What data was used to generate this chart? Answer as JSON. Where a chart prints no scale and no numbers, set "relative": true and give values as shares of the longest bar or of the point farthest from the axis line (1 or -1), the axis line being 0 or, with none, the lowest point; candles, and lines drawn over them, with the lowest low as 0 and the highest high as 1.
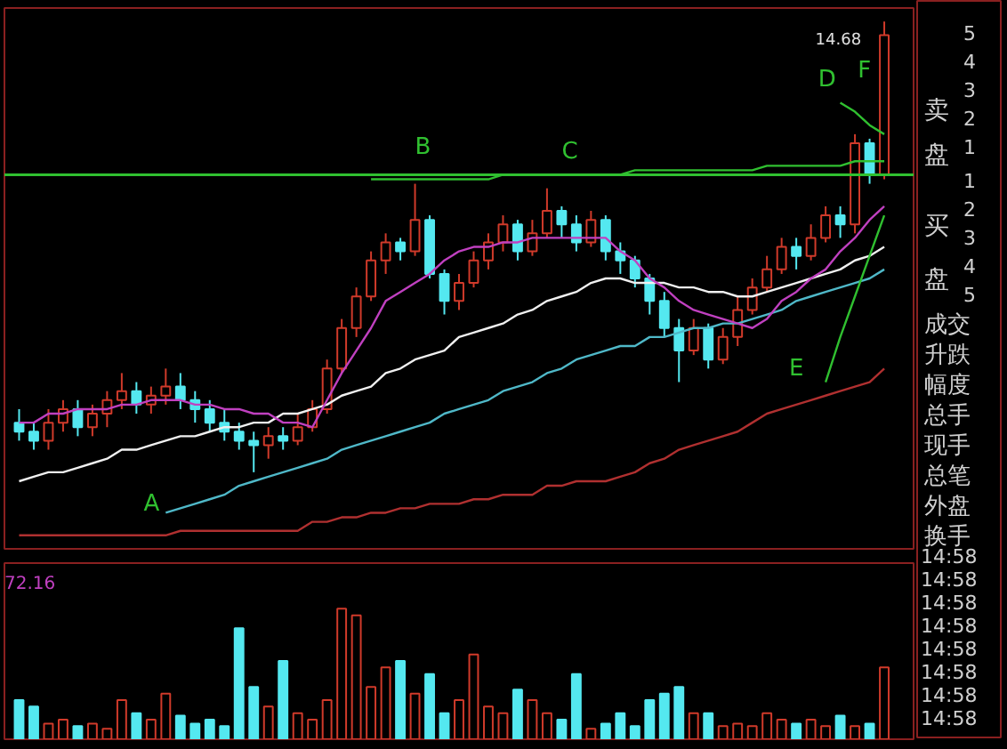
{
  "chart_data": [
    {
      "type": "candlestick",
      "relative": true,
      "categories": [
        null,
        null,
        null,
        null,
        null,
        null,
        null,
        null,
        null,
        null,
        null,
        null,
        null,
        null,
        null,
        null,
        null,
        null,
        null,
        null,
        null,
        null,
        null,
        null,
        null,
        null,
        null,
        null,
        null,
        null,
        null,
        null,
        null,
        null,
        null,
        null,
        null,
        null,
        null,
        null,
        null,
        null,
        null,
        null,
        null,
        null,
        null,
        null,
        null,
        null,
        null,
        null,
        null,
        null,
        null,
        null,
        null,
        null,
        null,
        null
      ],
      "ohlc": [
        [
          0.11,
          0.14,
          0.07,
          0.09
        ],
        [
          0.09,
          0.11,
          0.05,
          0.07
        ],
        [
          0.07,
          0.14,
          0.05,
          0.11
        ],
        [
          0.11,
          0.16,
          0.09,
          0.14
        ],
        [
          0.14,
          0.16,
          0.08,
          0.1
        ],
        [
          0.1,
          0.15,
          0.08,
          0.13
        ],
        [
          0.13,
          0.18,
          0.1,
          0.16
        ],
        [
          0.16,
          0.22,
          0.14,
          0.18
        ],
        [
          0.18,
          0.2,
          0.13,
          0.15
        ],
        [
          0.15,
          0.19,
          0.13,
          0.17
        ],
        [
          0.17,
          0.23,
          0.15,
          0.19
        ],
        [
          0.19,
          0.22,
          0.14,
          0.16
        ],
        [
          0.16,
          0.18,
          0.11,
          0.14
        ],
        [
          0.14,
          0.16,
          0.09,
          0.11
        ],
        [
          0.11,
          0.14,
          0.07,
          0.09
        ],
        [
          0.09,
          0.11,
          0.05,
          0.07
        ],
        [
          0.07,
          0.09,
          0.0,
          0.06
        ],
        [
          0.06,
          0.1,
          0.03,
          0.08
        ],
        [
          0.08,
          0.1,
          0.05,
          0.07
        ],
        [
          0.07,
          0.13,
          0.06,
          0.1
        ],
        [
          0.1,
          0.16,
          0.09,
          0.14
        ],
        [
          0.14,
          0.25,
          0.13,
          0.23
        ],
        [
          0.23,
          0.34,
          0.22,
          0.32
        ],
        [
          0.32,
          0.41,
          0.3,
          0.39
        ],
        [
          0.39,
          0.49,
          0.38,
          0.47
        ],
        [
          0.47,
          0.53,
          0.44,
          0.51
        ],
        [
          0.51,
          0.52,
          0.47,
          0.49
        ],
        [
          0.49,
          0.64,
          0.48,
          0.56
        ],
        [
          0.56,
          0.57,
          0.43,
          0.44
        ],
        [
          0.44,
          0.45,
          0.35,
          0.38
        ],
        [
          0.38,
          0.44,
          0.36,
          0.42
        ],
        [
          0.42,
          0.49,
          0.41,
          0.47
        ],
        [
          0.47,
          0.53,
          0.45,
          0.51
        ],
        [
          0.51,
          0.57,
          0.49,
          0.55
        ],
        [
          0.55,
          0.56,
          0.47,
          0.49
        ],
        [
          0.49,
          0.56,
          0.48,
          0.53
        ],
        [
          0.53,
          0.63,
          0.52,
          0.58
        ],
        [
          0.58,
          0.59,
          0.52,
          0.55
        ],
        [
          0.55,
          0.57,
          0.49,
          0.51
        ],
        [
          0.51,
          0.58,
          0.5,
          0.56
        ],
        [
          0.56,
          0.57,
          0.47,
          0.49
        ],
        [
          0.49,
          0.51,
          0.44,
          0.47
        ],
        [
          0.47,
          0.48,
          0.41,
          0.43
        ],
        [
          0.43,
          0.44,
          0.35,
          0.38
        ],
        [
          0.38,
          0.4,
          0.3,
          0.32
        ],
        [
          0.32,
          0.34,
          0.2,
          0.27
        ],
        [
          0.27,
          0.34,
          0.26,
          0.32
        ],
        [
          0.32,
          0.33,
          0.23,
          0.25
        ],
        [
          0.25,
          0.32,
          0.24,
          0.3
        ],
        [
          0.3,
          0.39,
          0.28,
          0.36
        ],
        [
          0.36,
          0.43,
          0.35,
          0.41
        ],
        [
          0.41,
          0.48,
          0.4,
          0.45
        ],
        [
          0.45,
          0.52,
          0.44,
          0.5
        ],
        [
          0.5,
          0.52,
          0.45,
          0.48
        ],
        [
          0.48,
          0.55,
          0.47,
          0.52
        ],
        [
          0.52,
          0.59,
          0.51,
          0.57
        ],
        [
          0.57,
          0.59,
          0.52,
          0.55
        ],
        [
          0.55,
          0.75,
          0.53,
          0.73
        ],
        [
          0.73,
          0.74,
          0.64,
          0.66
        ],
        [
          0.66,
          1.0,
          0.65,
          0.97
        ]
      ],
      "series": [
        {
          "type": "line",
          "color": "#f0f0f0",
          "values": [
            -0.02,
            -0.01,
            0.0,
            0.0,
            0.01,
            0.02,
            0.03,
            0.05,
            0.05,
            0.06,
            0.07,
            0.08,
            0.08,
            0.09,
            0.1,
            0.1,
            0.11,
            0.11,
            0.13,
            0.13,
            0.14,
            0.15,
            0.17,
            0.18,
            0.19,
            0.22,
            0.23,
            0.25,
            0.26,
            0.27,
            0.3,
            0.31,
            0.32,
            0.33,
            0.35,
            0.36,
            0.38,
            0.39,
            0.4,
            0.42,
            0.43,
            0.43,
            0.42,
            0.42,
            0.42,
            0.41,
            0.41,
            0.4,
            0.4,
            0.39,
            0.39,
            0.4,
            0.41,
            0.42,
            0.43,
            0.44,
            0.45,
            0.47,
            0.48,
            0.5
          ]
        },
        {
          "type": "line",
          "color": "#4fb8c8",
          "values": [
            null,
            null,
            null,
            null,
            null,
            null,
            null,
            null,
            null,
            null,
            -0.09,
            -0.08,
            -0.07,
            -0.06,
            -0.05,
            -0.03,
            -0.02,
            -0.01,
            0.0,
            0.01,
            0.02,
            0.03,
            0.05,
            0.06,
            0.07,
            0.08,
            0.09,
            0.1,
            0.11,
            0.13,
            0.14,
            0.15,
            0.16,
            0.18,
            0.19,
            0.2,
            0.22,
            0.23,
            0.25,
            0.26,
            0.27,
            0.28,
            0.28,
            0.3,
            0.3,
            0.31,
            0.32,
            0.32,
            0.33,
            0.33,
            0.34,
            0.35,
            0.36,
            0.38,
            0.39,
            0.4,
            0.41,
            0.42,
            0.43,
            0.45
          ]
        },
        {
          "type": "line",
          "color": "#b03030",
          "values": [
            -0.14,
            -0.14,
            -0.14,
            -0.14,
            -0.14,
            -0.14,
            -0.14,
            -0.14,
            -0.14,
            -0.14,
            -0.14,
            -0.13,
            -0.13,
            -0.13,
            -0.13,
            -0.13,
            -0.13,
            -0.13,
            -0.13,
            -0.13,
            -0.11,
            -0.11,
            -0.1,
            -0.1,
            -0.09,
            -0.09,
            -0.08,
            -0.08,
            -0.07,
            -0.07,
            -0.07,
            -0.06,
            -0.06,
            -0.05,
            -0.05,
            -0.05,
            -0.03,
            -0.03,
            -0.02,
            -0.02,
            -0.02,
            -0.01,
            0.0,
            0.02,
            0.03,
            0.05,
            0.06,
            0.07,
            0.08,
            0.09,
            0.11,
            0.13,
            0.14,
            0.15,
            0.16,
            0.17,
            0.18,
            0.19,
            0.2,
            0.23
          ]
        },
        {
          "type": "line",
          "color": "#c040c0",
          "values": [
            0.11,
            0.11,
            0.13,
            0.13,
            0.14,
            0.14,
            0.14,
            0.15,
            0.15,
            0.16,
            0.16,
            0.16,
            0.15,
            0.15,
            0.14,
            0.14,
            0.13,
            0.13,
            0.11,
            0.11,
            0.1,
            0.16,
            0.22,
            0.27,
            0.32,
            0.38,
            0.4,
            0.42,
            0.44,
            0.47,
            0.49,
            0.5,
            0.5,
            0.51,
            0.51,
            0.52,
            0.52,
            0.52,
            0.52,
            0.52,
            0.52,
            0.49,
            0.47,
            0.43,
            0.41,
            0.38,
            0.36,
            0.35,
            0.34,
            0.33,
            0.32,
            0.34,
            0.38,
            0.4,
            0.43,
            0.45,
            0.49,
            0.52,
            0.56,
            0.59
          ]
        },
        {
          "type": "line",
          "color": "#30c030",
          "values": [
            null,
            null,
            null,
            null,
            null,
            null,
            null,
            null,
            null,
            null,
            null,
            null,
            null,
            null,
            null,
            null,
            null,
            null,
            null,
            null,
            null,
            null,
            null,
            null,
            0.65,
            0.65,
            0.65,
            0.65,
            0.65,
            0.65,
            0.65,
            0.65,
            0.65,
            0.66,
            0.66,
            0.66,
            0.66,
            0.66,
            0.66,
            0.66,
            0.66,
            0.66,
            0.67,
            0.67,
            0.67,
            0.67,
            0.67,
            0.67,
            0.67,
            0.67,
            0.67,
            0.68,
            0.68,
            0.68,
            0.68,
            0.68,
            0.68,
            0.69,
            0.69,
            0.69
          ]
        },
        {
          "type": "line",
          "color": "#30c030",
          "values": [
            null,
            null,
            null,
            null,
            null,
            null,
            null,
            null,
            null,
            null,
            null,
            null,
            null,
            null,
            null,
            null,
            null,
            null,
            null,
            null,
            null,
            null,
            null,
            null,
            null,
            null,
            null,
            null,
            null,
            null,
            null,
            null,
            null,
            null,
            null,
            null,
            null,
            null,
            null,
            null,
            null,
            null,
            null,
            null,
            null,
            null,
            null,
            null,
            null,
            null,
            null,
            null,
            null,
            null,
            null,
            null,
            0.82,
            0.8,
            0.77,
            0.75
          ]
        },
        {
          "type": "line",
          "color": "#30c030",
          "values": [
            null,
            null,
            null,
            null,
            null,
            null,
            null,
            null,
            null,
            null,
            null,
            null,
            null,
            null,
            null,
            null,
            null,
            null,
            null,
            null,
            null,
            null,
            null,
            null,
            null,
            null,
            null,
            null,
            null,
            null,
            null,
            null,
            null,
            null,
            null,
            null,
            null,
            null,
            null,
            null,
            null,
            null,
            null,
            null,
            null,
            null,
            null,
            null,
            null,
            null,
            null,
            null,
            null,
            null,
            null,
            0.2,
            0.3,
            0.39,
            0.48,
            0.57
          ]
        }
      ],
      "ref_lines": [
        {
          "axis": "y",
          "value": 0.66,
          "color": "#30c030"
        }
      ],
      "annotations": [
        "A",
        "B",
        "C",
        "D",
        "E",
        "F",
        "14.68"
      ]
    },
    {
      "type": "bar",
      "relative": true,
      "categories": [
        null,
        null,
        null,
        null,
        null,
        null,
        null,
        null,
        null,
        null,
        null,
        null,
        null,
        null,
        null,
        null,
        null,
        null,
        null,
        null,
        null,
        null,
        null,
        null,
        null,
        null,
        null,
        null,
        null,
        null,
        null,
        null,
        null,
        null,
        null,
        null,
        null,
        null,
        null,
        null,
        null,
        null,
        null,
        null,
        null,
        null,
        null,
        null,
        null,
        null,
        null,
        null,
        null,
        null,
        null,
        null,
        null,
        null,
        null,
        null
      ],
      "values": [
        0.3,
        0.25,
        0.12,
        0.15,
        0.1,
        0.12,
        0.08,
        0.3,
        0.2,
        0.15,
        0.35,
        0.18,
        0.12,
        0.15,
        0.1,
        0.85,
        0.4,
        0.25,
        0.6,
        0.2,
        0.15,
        0.3,
        1.0,
        0.95,
        0.4,
        0.55,
        0.6,
        0.35,
        0.5,
        0.2,
        0.3,
        0.65,
        0.25,
        0.2,
        0.38,
        0.3,
        0.2,
        0.15,
        0.5,
        0.08,
        0.12,
        0.2,
        0.1,
        0.3,
        0.35,
        0.4,
        0.2,
        0.2,
        0.1,
        0.12,
        0.1,
        0.2,
        0.15,
        0.12,
        0.15,
        0.1,
        0.18,
        0.1,
        0.12,
        0.55
      ],
      "colors": [
        "#54e8f0",
        "#54e8f0",
        "#d03a2a",
        "#d03a2a",
        "#54e8f0",
        "#d03a2a",
        "#d03a2a",
        "#d03a2a",
        "#54e8f0",
        "#d03a2a",
        "#d03a2a",
        "#54e8f0",
        "#54e8f0",
        "#54e8f0",
        "#54e8f0",
        "#54e8f0",
        "#54e8f0",
        "#d03a2a",
        "#54e8f0",
        "#d03a2a",
        "#d03a2a",
        "#d03a2a",
        "#d03a2a",
        "#d03a2a",
        "#d03a2a",
        "#d03a2a",
        "#54e8f0",
        "#d03a2a",
        "#54e8f0",
        "#54e8f0",
        "#d03a2a",
        "#d03a2a",
        "#d03a2a",
        "#d03a2a",
        "#54e8f0",
        "#d03a2a",
        "#d03a2a",
        "#54e8f0",
        "#54e8f0",
        "#d03a2a",
        "#54e8f0",
        "#54e8f0",
        "#54e8f0",
        "#54e8f0",
        "#54e8f0",
        "#54e8f0",
        "#d03a2a",
        "#54e8f0",
        "#d03a2a",
        "#d03a2a",
        "#d03a2a",
        "#d03a2a",
        "#d03a2a",
        "#54e8f0",
        "#d03a2a",
        "#d03a2a",
        "#54e8f0",
        "#d03a2a",
        "#54e8f0",
        "#d03a2a"
      ],
      "annotations": [
        "72.16"
      ]
    },
    {
      "type": "other",
      "annotations": [
        "卖",
        "盘",
        "5",
        "4",
        "3",
        "2",
        "1",
        "买",
        "盘",
        "1",
        "2",
        "3",
        "4",
        "5",
        "成交",
        "升跌",
        "幅度",
        "总手",
        "现手",
        "总笔",
        "外盘",
        "换手",
        "14:58",
        "14:58",
        "14:58",
        "14:58",
        "14:58",
        "14:58",
        "14:58",
        "14:58"
      ]
    }
  ]
}
